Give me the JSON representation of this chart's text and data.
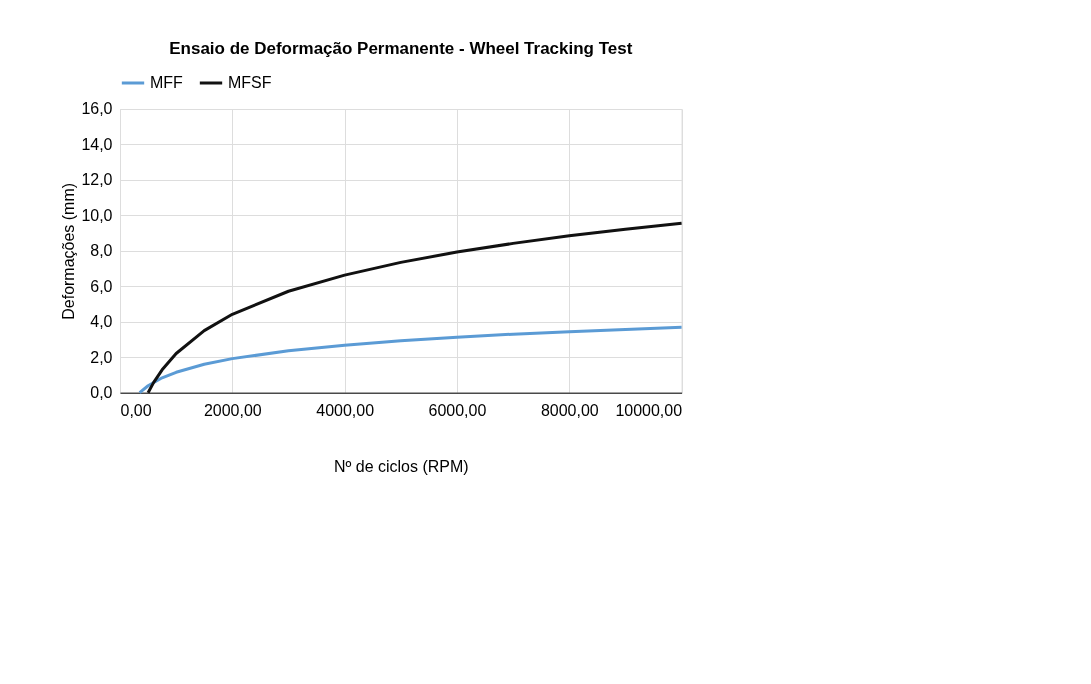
{
  "chart_data": {
    "type": "line",
    "title": "Ensaio de Deformação Permanente - Wheel Tracking Test",
    "xlabel": "Nº de ciclos (RPM)",
    "ylabel": "Deformações (mm)",
    "series": [
      {
        "name": "MFF",
        "color": "#5b9bd5",
        "x": [
          350,
          500,
          750,
          1000,
          1500,
          2000,
          3000,
          4000,
          5000,
          6000,
          7000,
          8000,
          9000,
          10000
        ],
        "values": [
          0,
          0.39,
          0.84,
          1.15,
          1.6,
          1.92,
          2.36,
          2.68,
          2.93,
          3.13,
          3.3,
          3.44,
          3.57,
          3.69
        ]
      },
      {
        "name": "MFSF",
        "color": "#111111",
        "x": [
          500,
          600,
          750,
          1000,
          1500,
          2000,
          3000,
          4000,
          5000,
          6000,
          7000,
          8000,
          9000,
          10000
        ],
        "values": [
          0,
          0.58,
          1.29,
          2.21,
          3.5,
          4.42,
          5.72,
          6.63,
          7.35,
          7.93,
          8.42,
          8.85,
          9.22,
          9.56
        ]
      }
    ],
    "xlim": [
      0,
      10000
    ],
    "ylim": [
      0,
      16
    ],
    "xticks": [
      {
        "value": 0,
        "label": "0,00"
      },
      {
        "value": 2000,
        "label": "2000,00"
      },
      {
        "value": 4000,
        "label": "4000,00"
      },
      {
        "value": 6000,
        "label": "6000,00"
      },
      {
        "value": 8000,
        "label": "8000,00"
      },
      {
        "value": 10000,
        "label": "10000,00"
      }
    ],
    "yticks": [
      {
        "value": 0,
        "label": "0,0"
      },
      {
        "value": 2,
        "label": "2,0"
      },
      {
        "value": 4,
        "label": "4,0"
      },
      {
        "value": 6,
        "label": "6,0"
      },
      {
        "value": 8,
        "label": "8,0"
      },
      {
        "value": 10,
        "label": "10,0"
      },
      {
        "value": 12,
        "label": "12,0"
      },
      {
        "value": 14,
        "label": "14,0"
      },
      {
        "value": 16,
        "label": "16,0"
      }
    ],
    "grid": true,
    "legend": "top",
    "marker": "none",
    "line_style": "solid"
  }
}
